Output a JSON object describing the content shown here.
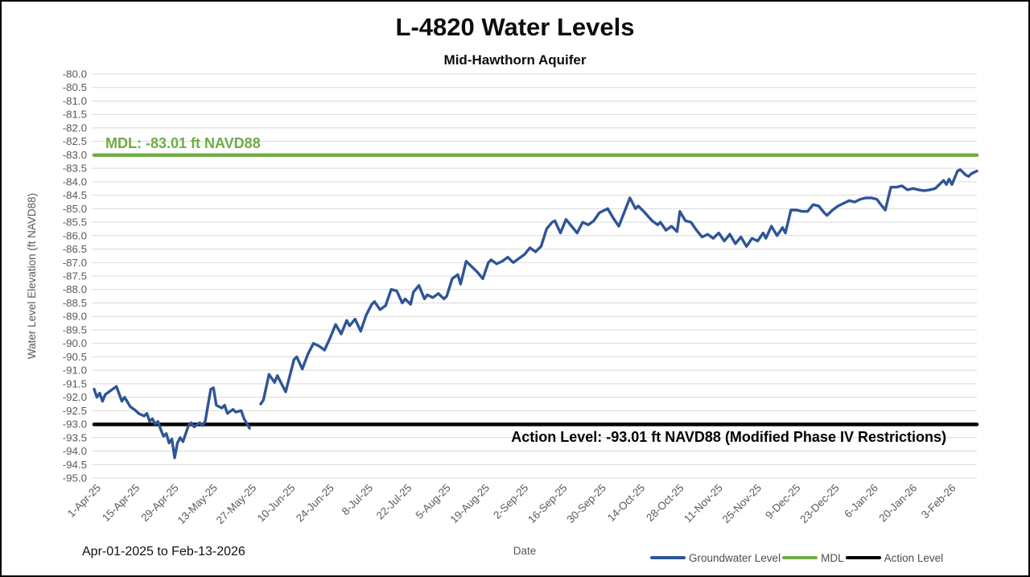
{
  "header": {
    "title": "L-4820 Water Levels",
    "subtitle": "Mid-Hawthorn Aquifer"
  },
  "footer": {
    "date_range": "Apr-01-2025 to Feb-13-2026"
  },
  "legend": [
    {
      "label": "Groundwater Level",
      "color": "#2F5597"
    },
    {
      "label": "MDL",
      "color": "#70AD47"
    },
    {
      "label": "Action Level",
      "color": "#000000"
    }
  ],
  "chart_data": {
    "type": "line",
    "title": "L-4820 Water Levels",
    "subtitle": "Mid-Hawthorn Aquifer",
    "xlabel": "Date",
    "ylabel": "Water Level Elevation (ft NAVD88)",
    "ylim": [
      -95.0,
      -80.0
    ],
    "ytick_step": 0.5,
    "grid": "horizontal",
    "legend_position": "bottom-right",
    "x_total_days": 318,
    "x_tick_interval_days": 14,
    "x_ticks": [
      "1-Apr-25",
      "15-Apr-25",
      "29-Apr-25",
      "13-May-25",
      "27-May-25",
      "10-Jun-25",
      "24-Jun-25",
      "8-Jul-25",
      "22-Jul-25",
      "5-Aug-25",
      "19-Aug-25",
      "2-Sep-25",
      "16-Sep-25",
      "30-Sep-25",
      "14-Oct-25",
      "28-Oct-25",
      "11-Nov-25",
      "25-Nov-25",
      "9-Dec-25",
      "23-Dec-25",
      "6-Jan-26",
      "20-Jan-26",
      "3-Feb-26"
    ],
    "reference_lines": [
      {
        "name": "MDL",
        "value": -83.01,
        "color": "#70AD47",
        "label": "MDL: -83.01 ft NAVD88"
      },
      {
        "name": "Action Level",
        "value": -93.01,
        "color": "#000000",
        "label": "Action Level: -93.01 ft NAVD88 (Modified Phase IV Restrictions)"
      }
    ],
    "series": [
      {
        "name": "Groundwater Level",
        "color": "#2F5597",
        "x_unit": "days since 1-Apr-25",
        "segments": [
          [
            [
              0,
              -91.7
            ],
            [
              1,
              -92.0
            ],
            [
              2,
              -91.85
            ],
            [
              3,
              -92.15
            ],
            [
              4,
              -91.9
            ],
            [
              8,
              -91.6
            ],
            [
              10,
              -92.15
            ],
            [
              11,
              -92.0
            ],
            [
              13,
              -92.35
            ],
            [
              15,
              -92.5
            ],
            [
              16,
              -92.6
            ],
            [
              18,
              -92.7
            ],
            [
              19,
              -92.6
            ],
            [
              20,
              -92.9
            ],
            [
              21,
              -92.8
            ],
            [
              22,
              -93.0
            ],
            [
              23,
              -92.9
            ],
            [
              24,
              -93.2
            ],
            [
              25,
              -93.45
            ],
            [
              26,
              -93.35
            ],
            [
              27,
              -93.7
            ],
            [
              28,
              -93.55
            ],
            [
              29,
              -94.25
            ],
            [
              30,
              -93.7
            ],
            [
              31,
              -93.5
            ],
            [
              32,
              -93.65
            ],
            [
              34,
              -93.05
            ],
            [
              35,
              -92.95
            ],
            [
              36,
              -93.1
            ],
            [
              38,
              -92.95
            ],
            [
              39,
              -93.05
            ],
            [
              40,
              -92.9
            ],
            [
              42,
              -91.7
            ],
            [
              43,
              -91.65
            ],
            [
              44,
              -92.3
            ],
            [
              46,
              -92.4
            ],
            [
              47,
              -92.3
            ],
            [
              48,
              -92.6
            ],
            [
              50,
              -92.45
            ],
            [
              51,
              -92.55
            ],
            [
              53,
              -92.5
            ],
            [
              54,
              -92.8
            ],
            [
              56,
              -93.15
            ]
          ],
          [
            [
              60,
              -92.25
            ],
            [
              61,
              -92.1
            ],
            [
              63,
              -91.15
            ],
            [
              65,
              -91.45
            ],
            [
              66,
              -91.2
            ],
            [
              69,
              -91.8
            ],
            [
              72,
              -90.6
            ],
            [
              73,
              -90.5
            ],
            [
              75,
              -90.95
            ],
            [
              77,
              -90.4
            ],
            [
              79,
              -90.0
            ],
            [
              81,
              -90.1
            ],
            [
              83,
              -90.25
            ],
            [
              85,
              -89.8
            ],
            [
              87,
              -89.3
            ],
            [
              89,
              -89.65
            ],
            [
              91,
              -89.15
            ],
            [
              92,
              -89.35
            ],
            [
              94,
              -89.1
            ],
            [
              96,
              -89.55
            ],
            [
              98,
              -88.95
            ],
            [
              100,
              -88.55
            ],
            [
              101,
              -88.45
            ],
            [
              103,
              -88.75
            ],
            [
              105,
              -88.6
            ],
            [
              107,
              -88.0
            ],
            [
              109,
              -88.05
            ],
            [
              111,
              -88.5
            ],
            [
              112,
              -88.35
            ],
            [
              114,
              -88.55
            ],
            [
              115,
              -88.1
            ],
            [
              117,
              -87.85
            ],
            [
              119,
              -88.35
            ],
            [
              120,
              -88.2
            ],
            [
              122,
              -88.3
            ],
            [
              124,
              -88.15
            ],
            [
              126,
              -88.35
            ],
            [
              127,
              -88.25
            ],
            [
              129,
              -87.6
            ],
            [
              131,
              -87.45
            ],
            [
              132,
              -87.8
            ],
            [
              134,
              -86.95
            ],
            [
              136,
              -87.15
            ],
            [
              138,
              -87.35
            ],
            [
              140,
              -87.6
            ],
            [
              142,
              -87.0
            ],
            [
              143,
              -86.9
            ],
            [
              145,
              -87.05
            ],
            [
              147,
              -86.95
            ],
            [
              149,
              -86.8
            ],
            [
              151,
              -87.0
            ],
            [
              153,
              -86.85
            ],
            [
              155,
              -86.7
            ],
            [
              157,
              -86.45
            ],
            [
              159,
              -86.6
            ],
            [
              161,
              -86.4
            ],
            [
              163,
              -85.75
            ],
            [
              165,
              -85.5
            ],
            [
              166,
              -85.45
            ],
            [
              168,
              -85.9
            ],
            [
              170,
              -85.4
            ],
            [
              172,
              -85.65
            ],
            [
              174,
              -85.9
            ],
            [
              176,
              -85.5
            ],
            [
              178,
              -85.6
            ],
            [
              180,
              -85.45
            ],
            [
              182,
              -85.15
            ],
            [
              185,
              -85.0
            ],
            [
              187,
              -85.35
            ],
            [
              189,
              -85.65
            ],
            [
              193,
              -84.6
            ],
            [
              195,
              -85.0
            ],
            [
              196,
              -84.9
            ],
            [
              198,
              -85.1
            ],
            [
              201,
              -85.45
            ],
            [
              203,
              -85.6
            ],
            [
              204,
              -85.5
            ],
            [
              206,
              -85.8
            ],
            [
              208,
              -85.65
            ],
            [
              210,
              -85.85
            ],
            [
              211,
              -85.1
            ],
            [
              213,
              -85.45
            ],
            [
              215,
              -85.5
            ],
            [
              217,
              -85.8
            ],
            [
              219,
              -86.05
            ],
            [
              221,
              -85.95
            ],
            [
              223,
              -86.1
            ],
            [
              225,
              -85.9
            ],
            [
              227,
              -86.2
            ],
            [
              229,
              -85.95
            ],
            [
              231,
              -86.3
            ],
            [
              233,
              -86.05
            ],
            [
              235,
              -86.4
            ],
            [
              237,
              -86.1
            ],
            [
              239,
              -86.2
            ],
            [
              241,
              -85.9
            ],
            [
              242,
              -86.1
            ],
            [
              244,
              -85.65
            ],
            [
              246,
              -86.0
            ],
            [
              248,
              -85.7
            ],
            [
              249,
              -85.9
            ],
            [
              251,
              -85.05
            ],
            [
              253,
              -85.05
            ],
            [
              255,
              -85.1
            ],
            [
              257,
              -85.1
            ],
            [
              259,
              -84.85
            ],
            [
              261,
              -84.9
            ],
            [
              263,
              -85.15
            ],
            [
              264,
              -85.25
            ],
            [
              266,
              -85.05
            ],
            [
              268,
              -84.9
            ],
            [
              270,
              -84.8
            ],
            [
              272,
              -84.7
            ],
            [
              274,
              -84.75
            ],
            [
              276,
              -84.65
            ],
            [
              278,
              -84.6
            ],
            [
              280,
              -84.6
            ],
            [
              282,
              -84.65
            ],
            [
              283,
              -84.8
            ],
            [
              285,
              -85.05
            ],
            [
              287,
              -84.2
            ],
            [
              289,
              -84.2
            ],
            [
              291,
              -84.15
            ],
            [
              293,
              -84.3
            ],
            [
              295,
              -84.25
            ],
            [
              297,
              -84.3
            ],
            [
              299,
              -84.33
            ],
            [
              301,
              -84.3
            ],
            [
              303,
              -84.25
            ],
            [
              305,
              -84.05
            ],
            [
              306,
              -83.95
            ],
            [
              307,
              -84.1
            ],
            [
              308,
              -83.9
            ],
            [
              309,
              -84.1
            ],
            [
              311,
              -83.6
            ],
            [
              312,
              -83.55
            ],
            [
              314,
              -83.75
            ],
            [
              315,
              -83.8
            ],
            [
              316,
              -83.7
            ],
            [
              318,
              -83.6
            ]
          ]
        ]
      }
    ]
  }
}
